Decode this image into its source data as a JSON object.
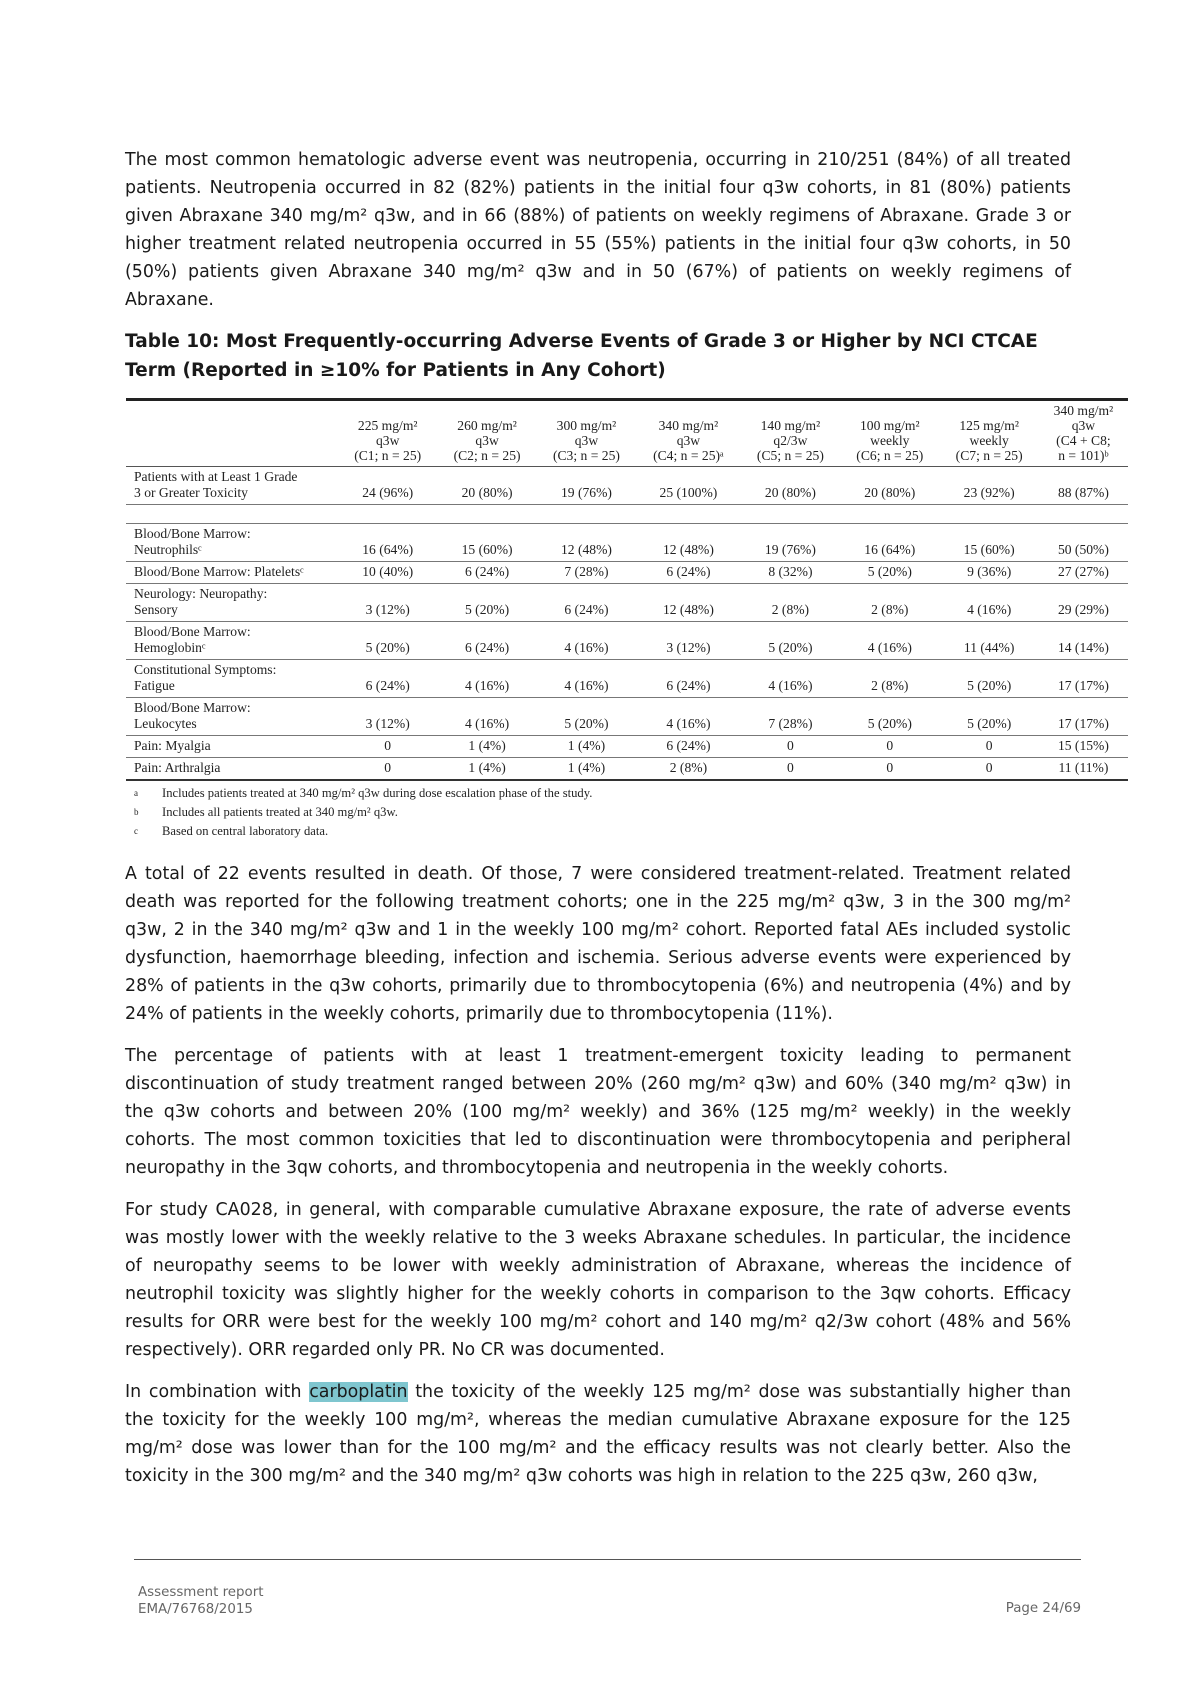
{
  "para1": "The most common hematologic adverse event was neutropenia, occurring in 210/251 (84%) of all treated patients. Neutropenia occurred in 82 (82%) patients in the initial four q3w cohorts, in 81 (80%) patients given Abraxane 340 mg/m² q3w, and in 66 (88%) of patients on weekly regimens of Abraxane. Grade 3 or higher treatment related neutropenia occurred in 55 (55%) patients in the initial four q3w cohorts, in 50 (50%) patients given Abraxane 340  mg/m² q3w and in 50 (67%) of patients on weekly regimens of Abraxane.",
  "table": {
    "caption": "Table 10: Most Frequently-occurring Adverse Events of Grade 3 or Higher by NCI CTCAE Term (Reported in ≥10% for Patients in Any Cohort)",
    "headers": [
      [
        "225 mg/m²",
        "q3w",
        "(C1; n = 25)"
      ],
      [
        "260 mg/m²",
        "q3w",
        "(C2; n = 25)"
      ],
      [
        "300 mg/m²",
        "q3w",
        "(C3; n = 25)"
      ],
      [
        "340 mg/m²",
        "q3w",
        "(C4; n = 25)ᵃ"
      ],
      [
        "140 mg/m²",
        "q2/3w",
        "(C5; n = 25)"
      ],
      [
        "100 mg/m²",
        "weekly",
        "(C6; n = 25)"
      ],
      [
        "125 mg/m²",
        "weekly",
        "(C7; n = 25)"
      ],
      [
        "340 mg/m²",
        "q3w",
        "(C4 + C8;",
        "n = 101)ᵇ"
      ]
    ],
    "row0": {
      "label1": "Patients with at Least 1 Grade",
      "label2": "3 or Greater Toxicity",
      "values": [
        "24 (96%)",
        "20 (80%)",
        "19 (76%)",
        "25 (100%)",
        "20 (80%)",
        "20 (80%)",
        "23 (92%)",
        "88 (87%)"
      ]
    },
    "rows": [
      {
        "label1": "Blood/Bone Marrow:",
        "label2": "Neutrophilsᶜ",
        "values": [
          "16 (64%)",
          "15 (60%)",
          "12 (48%)",
          "12 (48%)",
          "19 (76%)",
          "16 (64%)",
          "15 (60%)",
          "50 (50%)"
        ]
      },
      {
        "label1": "Blood/Bone Marrow: Plateletsᶜ",
        "label2": "",
        "values": [
          "10 (40%)",
          "6 (24%)",
          "7 (28%)",
          "6 (24%)",
          "8 (32%)",
          "5 (20%)",
          "9 (36%)",
          "27 (27%)"
        ]
      },
      {
        "label1": "Neurology: Neuropathy:",
        "label2": "Sensory",
        "values": [
          "3 (12%)",
          "5 (20%)",
          "6 (24%)",
          "12 (48%)",
          "2 (8%)",
          "2 (8%)",
          "4 (16%)",
          "29 (29%)"
        ]
      },
      {
        "label1": "Blood/Bone Marrow:",
        "label2": "Hemoglobinᶜ",
        "values": [
          "5 (20%)",
          "6 (24%)",
          "4 (16%)",
          "3 (12%)",
          "5 (20%)",
          "4 (16%)",
          "11 (44%)",
          "14 (14%)"
        ]
      },
      {
        "label1": "Constitutional Symptoms:",
        "label2": "Fatigue",
        "values": [
          "6 (24%)",
          "4 (16%)",
          "4 (16%)",
          "6 (24%)",
          "4 (16%)",
          "2 (8%)",
          "5 (20%)",
          "17 (17%)"
        ]
      },
      {
        "label1": "Blood/Bone Marrow:",
        "label2": "Leukocytes",
        "values": [
          "3 (12%)",
          "4 (16%)",
          "5 (20%)",
          "4 (16%)",
          "7 (28%)",
          "5 (20%)",
          "5 (20%)",
          "17 (17%)"
        ]
      },
      {
        "label1": "Pain: Myalgia",
        "label2": "",
        "values": [
          "0",
          "1 (4%)",
          "1 (4%)",
          "6 (24%)",
          "0",
          "0",
          "0",
          "15 (15%)"
        ]
      },
      {
        "label1": "Pain: Arthralgia",
        "label2": "",
        "values": [
          "0",
          "1 (4%)",
          "1 (4%)",
          "2 (8%)",
          "0",
          "0",
          "0",
          "11 (11%)"
        ]
      }
    ],
    "footnotes": [
      {
        "mark": "a",
        "text": "Includes patients treated at 340 mg/m² q3w during dose escalation phase of the study."
      },
      {
        "mark": "b",
        "text": "Includes all patients treated at 340 mg/m² q3w."
      },
      {
        "mark": "c",
        "text": "Based on central laboratory data."
      }
    ]
  },
  "para2": "A total of 22 events resulted in death. Of those, 7 were considered treatment-related. Treatment related death was reported for the following treatment cohorts; one in the 225 mg/m² q3w, 3 in the 300 mg/m² q3w, 2 in the 340 mg/m² q3w and 1 in the weekly 100 mg/m² cohort. Reported fatal AEs included systolic dysfunction, haemorrhage bleeding, infection and ischemia. Serious adverse events were experienced by 28% of patients in the q3w cohorts, primarily due to thrombocytopenia (6%) and neutropenia (4%) and by 24% of patients in the weekly cohorts, primarily due to thrombocytopenia (11%).",
  "para3": "The percentage of patients with at least 1 treatment-emergent toxicity leading to permanent discontinuation of study treatment ranged between 20% (260 mg/m² q3w) and 60% (340 mg/m² q3w) in the q3w cohorts and between 20% (100 mg/m² weekly) and 36% (125 mg/m² weekly) in the weekly cohorts. The most common toxicities that led to discontinuation were thrombocytopenia and peripheral neuropathy in the 3qw cohorts, and thrombocytopenia and neutropenia in the weekly cohorts.",
  "para4": "For study CA028, in general, with comparable cumulative Abraxane exposure, the rate of adverse events was mostly lower with the weekly relative to the 3 weeks Abraxane schedules. In particular, the incidence of neuropathy seems to be lower with weekly administration of Abraxane, whereas the incidence of neutrophil toxicity was slightly higher for the weekly cohorts in comparison to the 3qw cohorts. Efficacy results for ORR were best for the weekly 100 mg/m² cohort and 140 mg/m² q2/3w cohort (48% and 56% respectively). ORR regarded only PR. No CR was documented.",
  "para5": {
    "before": "In combination with ",
    "highlight": "carboplatin",
    "after": " the toxicity of the weekly 125 mg/m² dose was substantially higher than the toxicity for the weekly 100 mg/m², whereas the median cumulative Abraxane exposure for the 125 mg/m²  dose was lower than for the 100 mg/m² and the efficacy results was not clearly better. Also the toxicity in the 300 mg/m² and the 340 mg/m² q3w cohorts was high in relation to the 225 q3w, 260 q3w,"
  },
  "footer": {
    "line1": "Assessment report",
    "line2": "EMA/76768/2015",
    "page": "Page 24/69"
  },
  "colors": {
    "highlight": "#7fc6cf",
    "text": "#1a1a1a"
  }
}
